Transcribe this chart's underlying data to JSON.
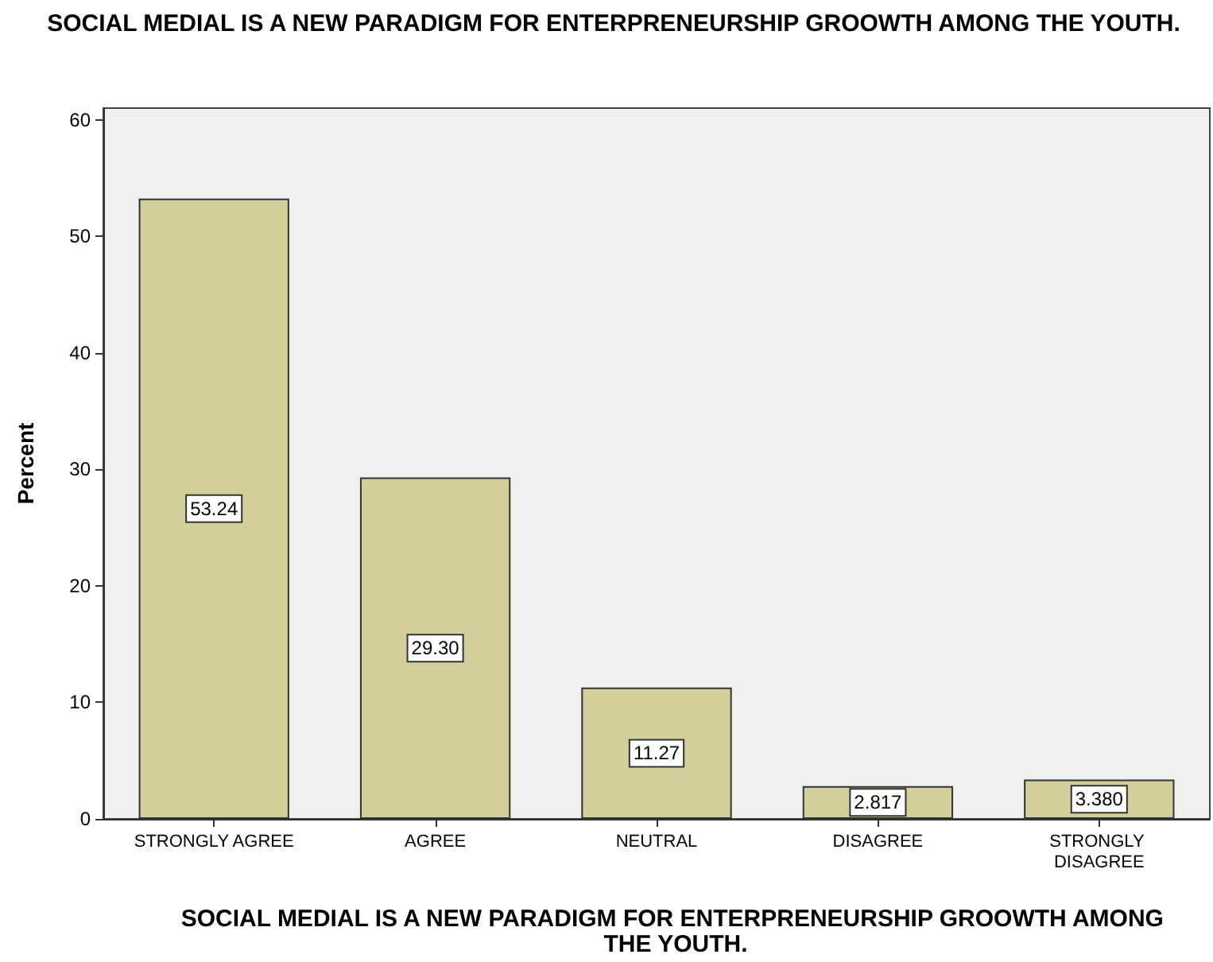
{
  "chart_data": {
    "type": "bar",
    "title": "SOCIAL MEDIAL IS A NEW PARADIGM FOR ENTERPRENEURSHIP GROOWTH AMONG THE YOUTH.",
    "xlabel": "SOCIAL MEDIAL IS A NEW PARADIGM FOR ENTERPRENEURSHIP GROOWTH AMONG THE YOUTH.",
    "ylabel": "Percent",
    "categories": [
      "STRONGLY AGREE",
      "AGREE",
      "NEUTRAL",
      "DISAGREE",
      "STRONGLY DISAGREE"
    ],
    "values": [
      53.24,
      29.3,
      11.27,
      2.817,
      3.38
    ],
    "value_labels": [
      "53.24",
      "29.30",
      "11.27",
      "2.817",
      "3.380"
    ],
    "color": "#d3cf9b",
    "ylim": [
      0,
      61
    ],
    "yticks": [
      0,
      10,
      20,
      30,
      40,
      50,
      60
    ],
    "grid": false
  }
}
